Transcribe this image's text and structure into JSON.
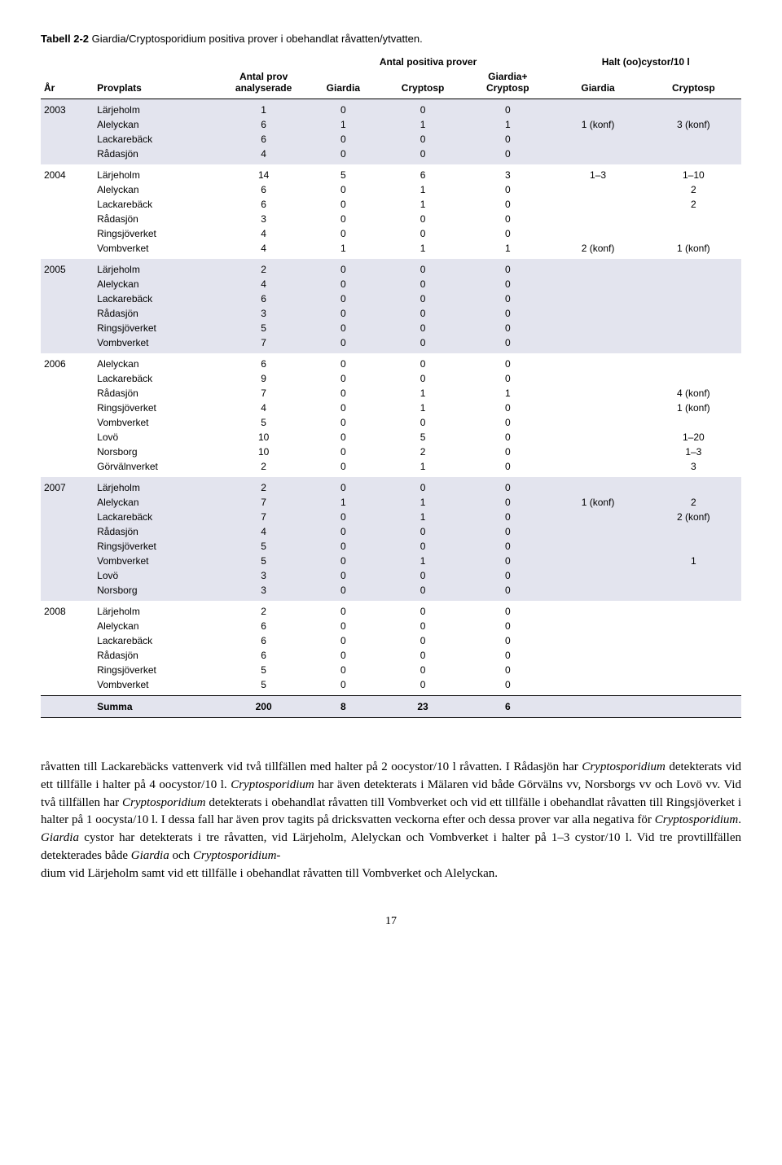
{
  "caption": {
    "label": "Tabell 2-2",
    "text": "Giardia/Cryptosporidium positiva prover i obehandlat råvatten/ytvatten."
  },
  "headers": {
    "superA": "Antal positiva prover",
    "superB": "Halt (oo)cystor/10 l",
    "year": "År",
    "place": "Provplats",
    "n": "Antal prov analyserade",
    "g": "Giardia",
    "c": "Cryptosp",
    "gc": "Giardia+ Cryptosp",
    "hg": "Giardia",
    "hc": "Cryptosp"
  },
  "groups": [
    {
      "year": "2003",
      "shade": true,
      "rows": [
        {
          "place": "Lärjeholm",
          "n": "1",
          "g": "0",
          "c": "0",
          "gc": "0",
          "hg": "",
          "hc": ""
        },
        {
          "place": "Alelyckan",
          "n": "6",
          "g": "1",
          "c": "1",
          "gc": "1",
          "hg": "1 (konf)",
          "hc": "3 (konf)"
        },
        {
          "place": "Lackarebäck",
          "n": "6",
          "g": "0",
          "c": "0",
          "gc": "0",
          "hg": "",
          "hc": ""
        },
        {
          "place": "Rådasjön",
          "n": "4",
          "g": "0",
          "c": "0",
          "gc": "0",
          "hg": "",
          "hc": ""
        }
      ]
    },
    {
      "year": "2004",
      "shade": false,
      "rows": [
        {
          "place": "Lärjeholm",
          "n": "14",
          "g": "5",
          "c": "6",
          "gc": "3",
          "hg": "1–3",
          "hc": "1–10"
        },
        {
          "place": "Alelyckan",
          "n": "6",
          "g": "0",
          "c": "1",
          "gc": "0",
          "hg": "",
          "hc": "2"
        },
        {
          "place": "Lackarebäck",
          "n": "6",
          "g": "0",
          "c": "1",
          "gc": "0",
          "hg": "",
          "hc": "2"
        },
        {
          "place": "Rådasjön",
          "n": "3",
          "g": "0",
          "c": "0",
          "gc": "0",
          "hg": "",
          "hc": ""
        },
        {
          "place": "Ringsjöverket",
          "n": "4",
          "g": "0",
          "c": "0",
          "gc": "0",
          "hg": "",
          "hc": ""
        },
        {
          "place": "Vombverket",
          "n": "4",
          "g": "1",
          "c": "1",
          "gc": "1",
          "hg": "2 (konf)",
          "hc": "1 (konf)"
        }
      ]
    },
    {
      "year": "2005",
      "shade": true,
      "rows": [
        {
          "place": "Lärjeholm",
          "n": "2",
          "g": "0",
          "c": "0",
          "gc": "0",
          "hg": "",
          "hc": ""
        },
        {
          "place": "Alelyckan",
          "n": "4",
          "g": "0",
          "c": "0",
          "gc": "0",
          "hg": "",
          "hc": ""
        },
        {
          "place": "Lackarebäck",
          "n": "6",
          "g": "0",
          "c": "0",
          "gc": "0",
          "hg": "",
          "hc": ""
        },
        {
          "place": "Rådasjön",
          "n": "3",
          "g": "0",
          "c": "0",
          "gc": "0",
          "hg": "",
          "hc": ""
        },
        {
          "place": "Ringsjöverket",
          "n": "5",
          "g": "0",
          "c": "0",
          "gc": "0",
          "hg": "",
          "hc": ""
        },
        {
          "place": "Vombverket",
          "n": "7",
          "g": "0",
          "c": "0",
          "gc": "0",
          "hg": "",
          "hc": ""
        }
      ]
    },
    {
      "year": "2006",
      "shade": false,
      "rows": [
        {
          "place": "Alelyckan",
          "n": "6",
          "g": "0",
          "c": "0",
          "gc": "0",
          "hg": "",
          "hc": ""
        },
        {
          "place": "Lackarebäck",
          "n": "9",
          "g": "0",
          "c": "0",
          "gc": "0",
          "hg": "",
          "hc": ""
        },
        {
          "place": "Rådasjön",
          "n": "7",
          "g": "0",
          "c": "1",
          "gc": "1",
          "hg": "",
          "hc": "4 (konf)"
        },
        {
          "place": "Ringsjöverket",
          "n": "4",
          "g": "0",
          "c": "1",
          "gc": "0",
          "hg": "",
          "hc": "1 (konf)"
        },
        {
          "place": "Vombverket",
          "n": "5",
          "g": "0",
          "c": "0",
          "gc": "0",
          "hg": "",
          "hc": ""
        },
        {
          "place": "Lovö",
          "n": "10",
          "g": "0",
          "c": "5",
          "gc": "0",
          "hg": "",
          "hc": "1–20"
        },
        {
          "place": "Norsborg",
          "n": "10",
          "g": "0",
          "c": "2",
          "gc": "0",
          "hg": "",
          "hc": "1–3"
        },
        {
          "place": "Görvälnverket",
          "n": "2",
          "g": "0",
          "c": "1",
          "gc": "0",
          "hg": "",
          "hc": "3"
        }
      ]
    },
    {
      "year": "2007",
      "shade": true,
      "rows": [
        {
          "place": "Lärjeholm",
          "n": "2",
          "g": "0",
          "c": "0",
          "gc": "0",
          "hg": "",
          "hc": ""
        },
        {
          "place": "Alelyckan",
          "n": "7",
          "g": "1",
          "c": "1",
          "gc": "0",
          "hg": "1 (konf)",
          "hc": "2"
        },
        {
          "place": "Lackarebäck",
          "n": "7",
          "g": "0",
          "c": "1",
          "gc": "0",
          "hg": "",
          "hc": "2 (konf)"
        },
        {
          "place": "Rådasjön",
          "n": "4",
          "g": "0",
          "c": "0",
          "gc": "0",
          "hg": "",
          "hc": ""
        },
        {
          "place": "Ringsjöverket",
          "n": "5",
          "g": "0",
          "c": "0",
          "gc": "0",
          "hg": "",
          "hc": ""
        },
        {
          "place": "Vombverket",
          "n": "5",
          "g": "0",
          "c": "1",
          "gc": "0",
          "hg": "",
          "hc": "1"
        },
        {
          "place": "Lovö",
          "n": "3",
          "g": "0",
          "c": "0",
          "gc": "0",
          "hg": "",
          "hc": ""
        },
        {
          "place": "Norsborg",
          "n": "3",
          "g": "0",
          "c": "0",
          "gc": "0",
          "hg": "",
          "hc": ""
        }
      ]
    },
    {
      "year": "2008",
      "shade": false,
      "rows": [
        {
          "place": "Lärjeholm",
          "n": "2",
          "g": "0",
          "c": "0",
          "gc": "0",
          "hg": "",
          "hc": ""
        },
        {
          "place": "Alelyckan",
          "n": "6",
          "g": "0",
          "c": "0",
          "gc": "0",
          "hg": "",
          "hc": ""
        },
        {
          "place": "Lackarebäck",
          "n": "6",
          "g": "0",
          "c": "0",
          "gc": "0",
          "hg": "",
          "hc": ""
        },
        {
          "place": "Rådasjön",
          "n": "6",
          "g": "0",
          "c": "0",
          "gc": "0",
          "hg": "",
          "hc": ""
        },
        {
          "place": "Ringsjöverket",
          "n": "5",
          "g": "0",
          "c": "0",
          "gc": "0",
          "hg": "",
          "hc": ""
        },
        {
          "place": "Vombverket",
          "n": "5",
          "g": "0",
          "c": "0",
          "gc": "0",
          "hg": "",
          "hc": ""
        }
      ]
    }
  ],
  "sum": {
    "label": "Summa",
    "n": "200",
    "g": "8",
    "c": "23",
    "gc": "6"
  },
  "body": {
    "p1a": "råvatten till Lackarebäcks vattenverk vid två tillfällen med halter på 2 oocystor/10 l råvatten. I Rådasjön har ",
    "p1b": " detekterats vid ett tillfälle i halter på 4 oocystor/10 l. ",
    "p1c": " har även detekterats i Mälaren vid både Görvälns vv, Norsborgs vv och Lovö vv. Vid två tillfällen har ",
    "p1d": " detekterats i obehandlat råvatten till Vombverket och vid ett tillfälle i obehandlat råvatten till Ringsjöverket i halter på 1 oocysta/10 l. I dessa fall har även prov tagits på dricksvatten veckorna efter och dessa prover var alla negativa för ",
    "p1e": ". ",
    "p1f": " cystor har detekterats i tre råvatten, vid Lärjeholm, Alelyckan och Vombverket i halter på 1–3 cystor/10 l. Vid tre provtillfällen detekterades både ",
    "p1g": " och ",
    "p1h": " vid Lärjeholm samt vid ett tillfälle i obehandlat råvatten till Vombverket och Alelyckan.",
    "it_crypto": "Cryptosporidium",
    "it_giardia": "Giardia"
  },
  "page": "17"
}
